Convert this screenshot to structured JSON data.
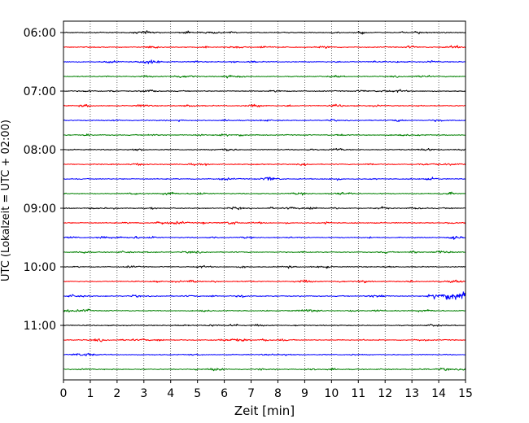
{
  "chart_data": {
    "type": "line",
    "title": "",
    "xlabel": "Zeit  [min]",
    "ylabel": "UTC (Lokalzeit = UTC + 02:00)",
    "xlim": [
      0,
      15
    ],
    "x_ticks": [
      0,
      1,
      2,
      3,
      4,
      5,
      6,
      7,
      8,
      9,
      10,
      11,
      12,
      13,
      14,
      15
    ],
    "y_tick_labels": [
      "06:00",
      "07:00",
      "08:00",
      "09:00",
      "10:00",
      "11:00"
    ],
    "grid": "vertical-dotted",
    "line_colors": [
      "#000000",
      "#ff0000",
      "#0000ff",
      "#008000"
    ],
    "rows": [
      {
        "time": "06:00",
        "color": "#000000"
      },
      {
        "time": "06:15",
        "color": "#ff0000"
      },
      {
        "time": "06:30",
        "color": "#0000ff"
      },
      {
        "time": "06:45",
        "color": "#008000"
      },
      {
        "time": "07:00",
        "color": "#000000"
      },
      {
        "time": "07:15",
        "color": "#ff0000"
      },
      {
        "time": "07:30",
        "color": "#0000ff"
      },
      {
        "time": "07:45",
        "color": "#008000"
      },
      {
        "time": "08:00",
        "color": "#000000"
      },
      {
        "time": "08:15",
        "color": "#ff0000"
      },
      {
        "time": "08:30",
        "color": "#0000ff"
      },
      {
        "time": "08:45",
        "color": "#008000"
      },
      {
        "time": "09:00",
        "color": "#000000"
      },
      {
        "time": "09:15",
        "color": "#ff0000"
      },
      {
        "time": "09:30",
        "color": "#0000ff"
      },
      {
        "time": "09:45",
        "color": "#008000"
      },
      {
        "time": "10:00",
        "color": "#000000"
      },
      {
        "time": "10:15",
        "color": "#ff0000"
      },
      {
        "time": "10:30",
        "color": "#0000ff"
      },
      {
        "time": "10:45",
        "color": "#008000"
      },
      {
        "time": "11:00",
        "color": "#000000"
      },
      {
        "time": "11:15",
        "color": "#ff0000"
      },
      {
        "time": "11:30",
        "color": "#0000ff"
      },
      {
        "time": "11:45",
        "color": "#008000"
      }
    ]
  }
}
